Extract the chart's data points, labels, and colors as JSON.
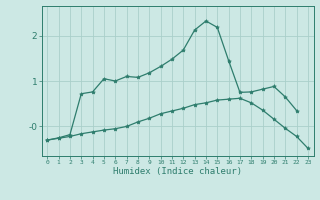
{
  "x": [
    0,
    1,
    2,
    3,
    4,
    5,
    6,
    7,
    8,
    9,
    10,
    11,
    12,
    13,
    14,
    15,
    16,
    17,
    18,
    19,
    20,
    21,
    22,
    23
  ],
  "line1": [
    -0.3,
    -0.25,
    -0.18,
    0.72,
    0.76,
    1.05,
    1.0,
    1.1,
    1.08,
    1.18,
    1.32,
    1.48,
    1.68,
    2.12,
    2.32,
    2.18,
    1.45,
    0.75,
    0.76,
    0.82,
    0.88,
    0.65,
    0.35,
    null
  ],
  "line2": [
    -0.3,
    -0.26,
    -0.22,
    -0.16,
    -0.12,
    -0.08,
    -0.05,
    0.0,
    0.1,
    0.18,
    0.28,
    0.34,
    0.4,
    0.48,
    0.52,
    0.58,
    0.6,
    0.62,
    0.52,
    0.36,
    0.16,
    -0.04,
    -0.22,
    -0.48
  ],
  "background_color": "#cce8e4",
  "grid_color": "#aacfca",
  "line_color": "#2e7d6d",
  "xlabel": "Humidex (Indice chaleur)",
  "ylim": [
    -0.65,
    2.65
  ],
  "xlim": [
    -0.5,
    23.5
  ],
  "xticks": [
    0,
    1,
    2,
    3,
    4,
    5,
    6,
    7,
    8,
    9,
    10,
    11,
    12,
    13,
    14,
    15,
    16,
    17,
    18,
    19,
    20,
    21,
    22,
    23
  ],
  "yticks": [
    0.0,
    1.0,
    2.0
  ],
  "ytick_labels": [
    "-0",
    "1",
    "2"
  ]
}
